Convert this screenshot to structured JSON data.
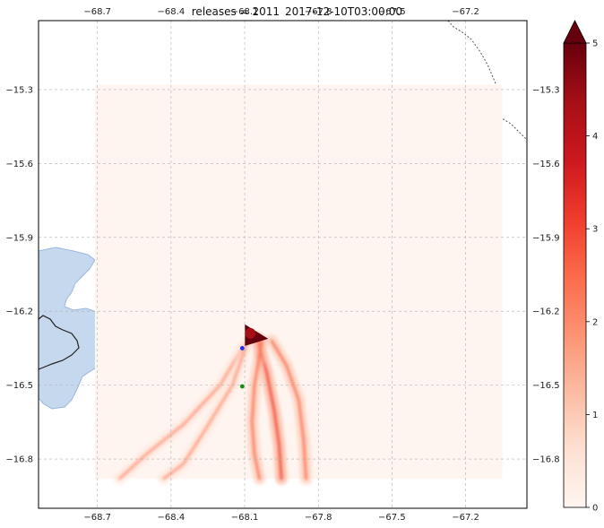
{
  "chart_data": {
    "type": "heatmap",
    "titles": [
      "releases = 2011",
      "2017-12-10T03:00:00"
    ],
    "x_ticks": [
      -68.7,
      -68.4,
      -68.1,
      -67.8,
      -67.5,
      -67.2
    ],
    "x_tick_labels": [
      "−68.7",
      "−68.4",
      "−68.1",
      "−67.8",
      "−67.5",
      "−67.2"
    ],
    "y_ticks": [
      -15.3,
      -15.6,
      -15.9,
      -16.2,
      -16.5,
      -16.8
    ],
    "y_tick_labels": [
      "−15.3",
      "−15.6",
      "−15.9",
      "−16.2",
      "−16.5",
      "−16.8"
    ],
    "xlim": [
      -68.94,
      -66.95
    ],
    "ylim": [
      -17.0,
      -15.02
    ],
    "data_extent": {
      "lon": [
        -68.71,
        -67.05
      ],
      "lat": [
        -16.88,
        -15.28
      ]
    },
    "grid": true,
    "gridlines_dashed": true,
    "colormap": "Reds",
    "colorbar": {
      "min": 0,
      "max": 5,
      "extend": "max",
      "ticks": [
        0,
        1,
        2,
        3,
        4,
        5
      ],
      "tick_labels": [
        "0",
        "1",
        "2",
        "3",
        "4",
        "5"
      ],
      "colors": [
        "#fff5f0",
        "#fee0d2",
        "#fcbba1",
        "#fc9272",
        "#fb6a4a",
        "#ef3b2c",
        "#cb181d",
        "#a50f15",
        "#67000d"
      ]
    },
    "markers": [
      {
        "name": "blue point",
        "lon": -68.11,
        "lat": -16.35,
        "color": "#1f2dff"
      },
      {
        "name": "green point",
        "lon": -68.11,
        "lat": -16.505,
        "color": "#1a8a1a"
      }
    ],
    "hotspot": {
      "lon": -68.07,
      "lat": -16.29,
      "value": 5
    },
    "plume_lines": [
      {
        "points": [
          [
            -68.11,
            -16.35
          ],
          [
            -68.2,
            -16.5
          ],
          [
            -68.35,
            -16.66
          ],
          [
            -68.5,
            -16.78
          ],
          [
            -68.61,
            -16.88
          ]
        ],
        "value": 0.8
      },
      {
        "points": [
          [
            -68.09,
            -16.33
          ],
          [
            -68.15,
            -16.5
          ],
          [
            -68.26,
            -16.68
          ],
          [
            -68.35,
            -16.82
          ],
          [
            -68.43,
            -16.88
          ]
        ],
        "value": 0.7
      },
      {
        "points": [
          [
            -68.05,
            -16.31
          ],
          [
            -68.01,
            -16.45
          ],
          [
            -67.98,
            -16.6
          ],
          [
            -67.96,
            -16.74
          ],
          [
            -67.95,
            -16.88
          ]
        ],
        "value": 1.8
      },
      {
        "points": [
          [
            -68.03,
            -16.32
          ],
          [
            -68.06,
            -16.5
          ],
          [
            -68.07,
            -16.65
          ],
          [
            -68.06,
            -16.78
          ],
          [
            -68.04,
            -16.88
          ]
        ],
        "value": 1.5
      },
      {
        "points": [
          [
            -67.99,
            -16.32
          ],
          [
            -67.93,
            -16.42
          ],
          [
            -67.88,
            -16.56
          ],
          [
            -67.86,
            -16.72
          ],
          [
            -67.85,
            -16.88
          ]
        ],
        "value": 1.2
      }
    ],
    "map_features": {
      "lake_color": "#c6d8ee",
      "lake_edge": "#9ab6de",
      "border_color": "#222222",
      "dotted_border_color": "#555555"
    }
  }
}
